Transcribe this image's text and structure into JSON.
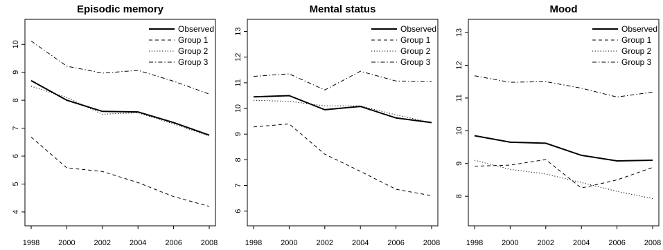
{
  "chart_data": [
    {
      "type": "line",
      "title": "Episodic memory",
      "xlabel": "",
      "ylabel": "",
      "x": [
        1998,
        2000,
        2002,
        2004,
        2006,
        2008
      ],
      "x_ticks": [
        "1998",
        "2000",
        "2002",
        "2004",
        "2006",
        "2008"
      ],
      "xlim": [
        1998,
        2008
      ],
      "ylim": [
        3.8,
        10.6
      ],
      "y_ticks": [
        4,
        5,
        6,
        7,
        8,
        9,
        10
      ],
      "grid": false,
      "legend": "top-right",
      "series": [
        {
          "name": "Observed",
          "style": "solid",
          "values": [
            8.7,
            8.0,
            7.6,
            7.58,
            7.2,
            6.75
          ]
        },
        {
          "name": "Group 1",
          "style": "dashed",
          "values": [
            6.68,
            5.58,
            5.45,
            5.05,
            4.55,
            4.2
          ]
        },
        {
          "name": "Group 2",
          "style": "dotted",
          "values": [
            8.5,
            8.1,
            7.5,
            7.55,
            7.15,
            6.72
          ]
        },
        {
          "name": "Group 3",
          "style": "dashdot",
          "values": [
            10.12,
            9.22,
            8.97,
            9.07,
            8.68,
            8.22
          ]
        }
      ]
    },
    {
      "type": "line",
      "title": "Mental status",
      "xlabel": "",
      "ylabel": "",
      "x": [
        1998,
        2000,
        2002,
        2004,
        2006,
        2008
      ],
      "x_ticks": [
        "1998",
        "2000",
        "2002",
        "2004",
        "2006",
        "2008"
      ],
      "xlim": [
        1998,
        2008
      ],
      "ylim": [
        5.75,
        13.15
      ],
      "y_ticks": [
        6,
        7,
        8,
        9,
        10,
        11,
        12,
        13
      ],
      "grid": false,
      "legend": "top-right",
      "series": [
        {
          "name": "Observed",
          "style": "solid",
          "values": [
            10.45,
            10.5,
            9.95,
            10.08,
            9.63,
            9.45
          ]
        },
        {
          "name": "Group 1",
          "style": "dashed",
          "values": [
            9.28,
            9.4,
            8.22,
            7.55,
            6.85,
            6.6
          ]
        },
        {
          "name": "Group 2",
          "style": "dotted",
          "values": [
            10.32,
            10.28,
            10.1,
            10.1,
            9.75,
            9.45
          ]
        },
        {
          "name": "Group 3",
          "style": "dashdot",
          "values": [
            11.25,
            11.35,
            10.72,
            11.45,
            11.07,
            11.05
          ]
        }
      ]
    },
    {
      "type": "line",
      "title": "Mood",
      "xlabel": "",
      "ylabel": "",
      "x": [
        1998,
        2000,
        2002,
        2004,
        2006,
        2008
      ],
      "x_ticks": [
        "1998",
        "2000",
        "2002",
        "2004",
        "2006",
        "2008"
      ],
      "xlim": [
        1998,
        2008
      ],
      "ylim": [
        7.35,
        13.15
      ],
      "y_ticks": [
        8,
        9,
        10,
        11,
        12,
        13
      ],
      "grid": false,
      "legend": "top-right",
      "series": [
        {
          "name": "Observed",
          "style": "solid",
          "values": [
            9.85,
            9.65,
            9.62,
            9.25,
            9.08,
            9.1
          ]
        },
        {
          "name": "Group 1",
          "style": "dashed",
          "values": [
            8.92,
            8.95,
            9.12,
            8.25,
            8.5,
            8.88
          ]
        },
        {
          "name": "Group 2",
          "style": "dotted",
          "values": [
            9.1,
            8.82,
            8.68,
            8.42,
            8.15,
            7.93
          ]
        },
        {
          "name": "Group 3",
          "style": "dashdot",
          "values": [
            11.68,
            11.48,
            11.5,
            11.3,
            11.03,
            11.18
          ]
        }
      ]
    }
  ]
}
